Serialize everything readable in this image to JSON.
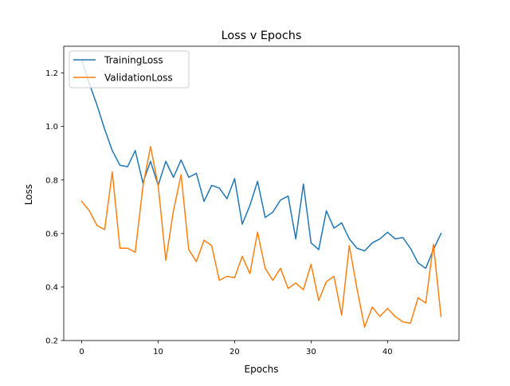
{
  "chart_data": {
    "type": "line",
    "title": "Loss v Epochs",
    "xlabel": "Epochs",
    "ylabel": "Loss",
    "xlim": [
      -2.35,
      49.35
    ],
    "ylim": [
      0.2,
      1.3
    ],
    "xticks": [
      0,
      10,
      20,
      30,
      40
    ],
    "xtick_labels": [
      "0",
      "10",
      "20",
      "30",
      "40"
    ],
    "yticks": [
      0.2,
      0.4,
      0.6,
      0.8,
      1.0,
      1.2
    ],
    "ytick_labels": [
      "0.2",
      "0.4",
      "0.6",
      "0.8",
      "1.0",
      "1.2"
    ],
    "grid": false,
    "legend_position": "top-left",
    "x": [
      0,
      1,
      2,
      3,
      4,
      5,
      6,
      7,
      8,
      9,
      10,
      11,
      12,
      13,
      14,
      15,
      16,
      17,
      18,
      19,
      20,
      21,
      22,
      23,
      24,
      25,
      26,
      27,
      28,
      29,
      30,
      31,
      32,
      33,
      34,
      35,
      36,
      37,
      38,
      39,
      40,
      41,
      42,
      43,
      44,
      45,
      46,
      47
    ],
    "series": [
      {
        "name": "TrainingLoss",
        "color": "#1f77b4",
        "values": [
          1.25,
          1.16,
          1.08,
          0.99,
          0.91,
          0.855,
          0.85,
          0.91,
          0.79,
          0.87,
          0.78,
          0.87,
          0.81,
          0.875,
          0.81,
          0.825,
          0.72,
          0.78,
          0.77,
          0.73,
          0.805,
          0.635,
          0.705,
          0.795,
          0.66,
          0.68,
          0.725,
          0.74,
          0.58,
          0.785,
          0.565,
          0.54,
          0.685,
          0.62,
          0.64,
          0.58,
          0.545,
          0.535,
          0.565,
          0.58,
          0.605,
          0.58,
          0.585,
          0.545,
          0.49,
          0.47,
          0.54,
          0.6
        ]
      },
      {
        "name": "ValidationLoss",
        "color": "#ff7f0e",
        "values": [
          0.72,
          0.685,
          0.63,
          0.615,
          0.83,
          0.545,
          0.545,
          0.53,
          0.775,
          0.925,
          0.78,
          0.5,
          0.685,
          0.82,
          0.54,
          0.495,
          0.575,
          0.555,
          0.425,
          0.44,
          0.435,
          0.515,
          0.45,
          0.605,
          0.47,
          0.425,
          0.47,
          0.395,
          0.415,
          0.39,
          0.485,
          0.35,
          0.42,
          0.44,
          0.295,
          0.555,
          0.395,
          0.25,
          0.325,
          0.29,
          0.32,
          0.29,
          0.27,
          0.265,
          0.36,
          0.34,
          0.56,
          0.29
        ]
      }
    ]
  }
}
